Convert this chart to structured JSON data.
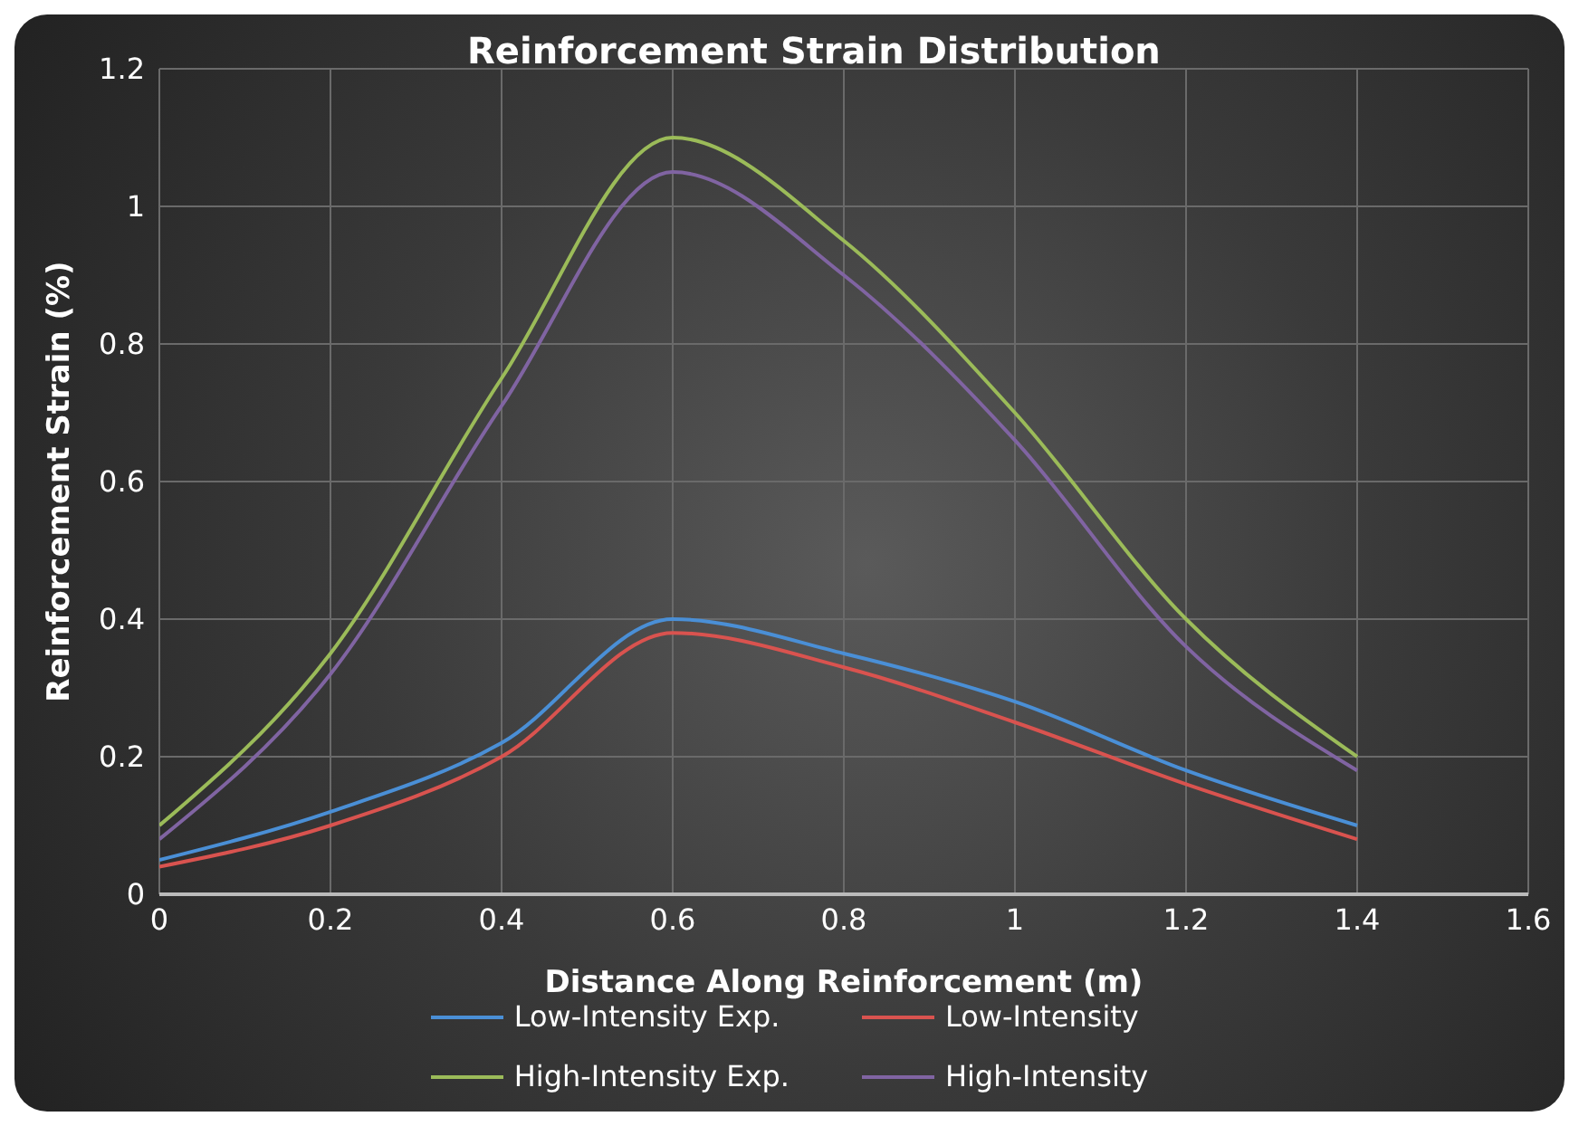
{
  "chart_data": {
    "type": "line",
    "title": "Reinforcement Strain Distribution",
    "xlabel": "Distance Along Reinforcement (m)",
    "ylabel": "Reinforcement Strain (%)",
    "x": [
      0,
      0.2,
      0.4,
      0.6,
      0.8,
      1,
      1.2,
      1.4
    ],
    "series": [
      {
        "name": "Low-Intensity Exp.",
        "color": "#4a8fd6",
        "values": [
          0.05,
          0.12,
          0.22,
          0.4,
          0.35,
          0.28,
          0.18,
          0.1
        ]
      },
      {
        "name": "Low-Intensity",
        "color": "#d9534f",
        "values": [
          0.04,
          0.1,
          0.2,
          0.38,
          0.33,
          0.25,
          0.16,
          0.08
        ]
      },
      {
        "name": "High-Intensity Exp.",
        "color": "#9bbb59",
        "values": [
          0.1,
          0.35,
          0.75,
          1.1,
          0.95,
          0.7,
          0.4,
          0.2
        ]
      },
      {
        "name": "High-Intensity",
        "color": "#8064a2",
        "values": [
          0.08,
          0.32,
          0.71,
          1.05,
          0.9,
          0.66,
          0.36,
          0.18
        ]
      }
    ],
    "xlim": [
      0,
      1.6
    ],
    "xticks": [
      0,
      0.2,
      0.4,
      0.6,
      0.8,
      1,
      1.2,
      1.4,
      1.6
    ],
    "ylim": [
      0,
      1.2
    ],
    "yticks": [
      0,
      0.2,
      0.4,
      0.6,
      0.8,
      1,
      1.2
    ],
    "grid": true,
    "legend": "bottom",
    "marker": "none",
    "line_style": "solid"
  }
}
